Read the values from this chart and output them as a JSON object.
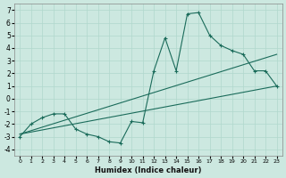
{
  "xlabel": "Humidex (Indice chaleur)",
  "bg_color": "#cce8e0",
  "line_color": "#1a6b5a",
  "xlim": [
    -0.5,
    23.5
  ],
  "ylim": [
    -4.5,
    7.5
  ],
  "xticks": [
    0,
    1,
    2,
    3,
    4,
    5,
    6,
    7,
    8,
    9,
    10,
    11,
    12,
    13,
    14,
    15,
    16,
    17,
    18,
    19,
    20,
    21,
    22,
    23
  ],
  "yticks": [
    -4,
    -3,
    -2,
    -1,
    0,
    1,
    2,
    3,
    4,
    5,
    6,
    7
  ],
  "series1_x": [
    0,
    1,
    2,
    3,
    4,
    5,
    6,
    7,
    8,
    9,
    10,
    11,
    12,
    13,
    14,
    15,
    16,
    17,
    18,
    19,
    20,
    21,
    22,
    23
  ],
  "series1_y": [
    -3.0,
    -2.0,
    -1.5,
    -1.2,
    -1.2,
    -2.4,
    -2.8,
    -3.0,
    -3.4,
    -3.5,
    -1.8,
    -1.9,
    2.2,
    4.8,
    2.2,
    6.7,
    6.8,
    5.0,
    4.2,
    3.8,
    3.5,
    2.2,
    2.2,
    1.0
  ],
  "series2_x": [
    0,
    23
  ],
  "series2_y": [
    -2.8,
    1.0
  ],
  "series3_x": [
    0,
    23
  ],
  "series3_y": [
    -2.8,
    3.5
  ],
  "grid_color": "#b0d8cc",
  "marker": "+"
}
